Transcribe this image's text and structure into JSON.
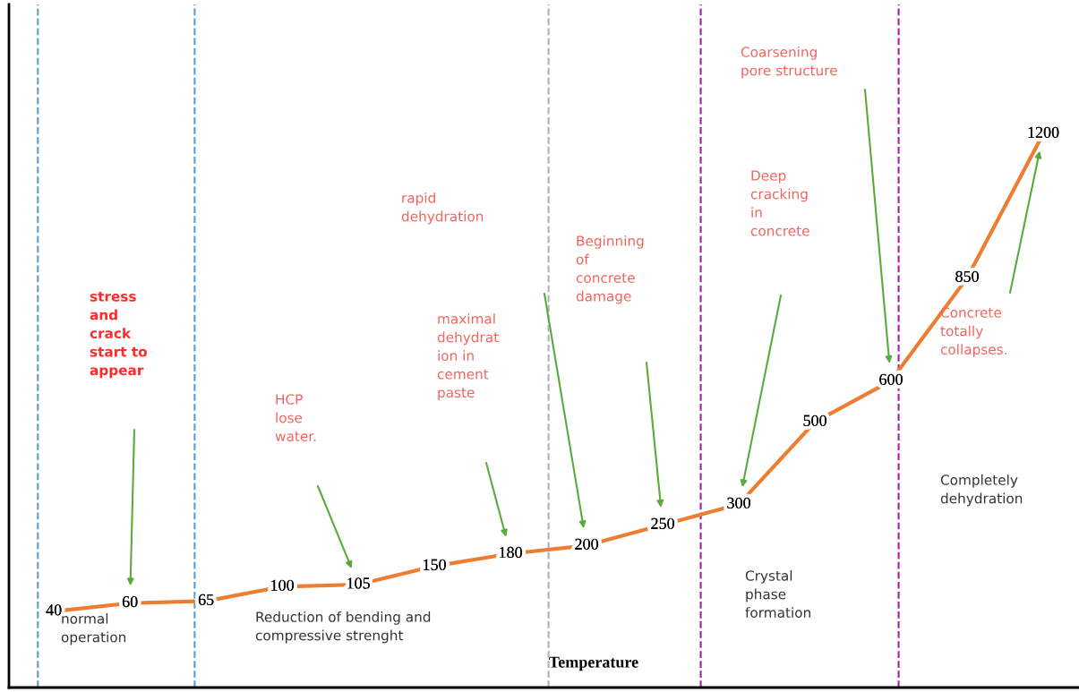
{
  "chart_data": {
    "type": "line",
    "xlabel": "Temperature",
    "categories": [
      null,
      null,
      null,
      null,
      null,
      null,
      null,
      null,
      null,
      null,
      null,
      null,
      null,
      null
    ],
    "series": [
      {
        "color": "#ed7d31",
        "values": [
          40,
          60,
          65,
          100,
          105,
          150,
          180,
          200,
          250,
          300,
          500,
          600,
          850,
          1200
        ]
      }
    ],
    "data_labels": true,
    "ylim": [
      -145,
      1514
    ],
    "grid": false,
    "legend": false,
    "line_style": "solid",
    "annotations": [
      "stress\nand\ncrack\nstart to\nappear",
      "HCP\nlose\nwater.",
      "maximal\ndehydrat\nion in\ncement\npaste",
      "rapid\ndehydration",
      "Beginning\nof\nconcrete\ndamage",
      "Deep\ncracking\nin\nconcrete",
      "Coarsening\npore structure",
      "Concrete\ntotally\ncollapses.",
      "Completely\ndehydration",
      "Crystal\nphase\nformation",
      "normal\noperation",
      "Reduction of bending and\ncompressive strenght"
    ]
  }
}
